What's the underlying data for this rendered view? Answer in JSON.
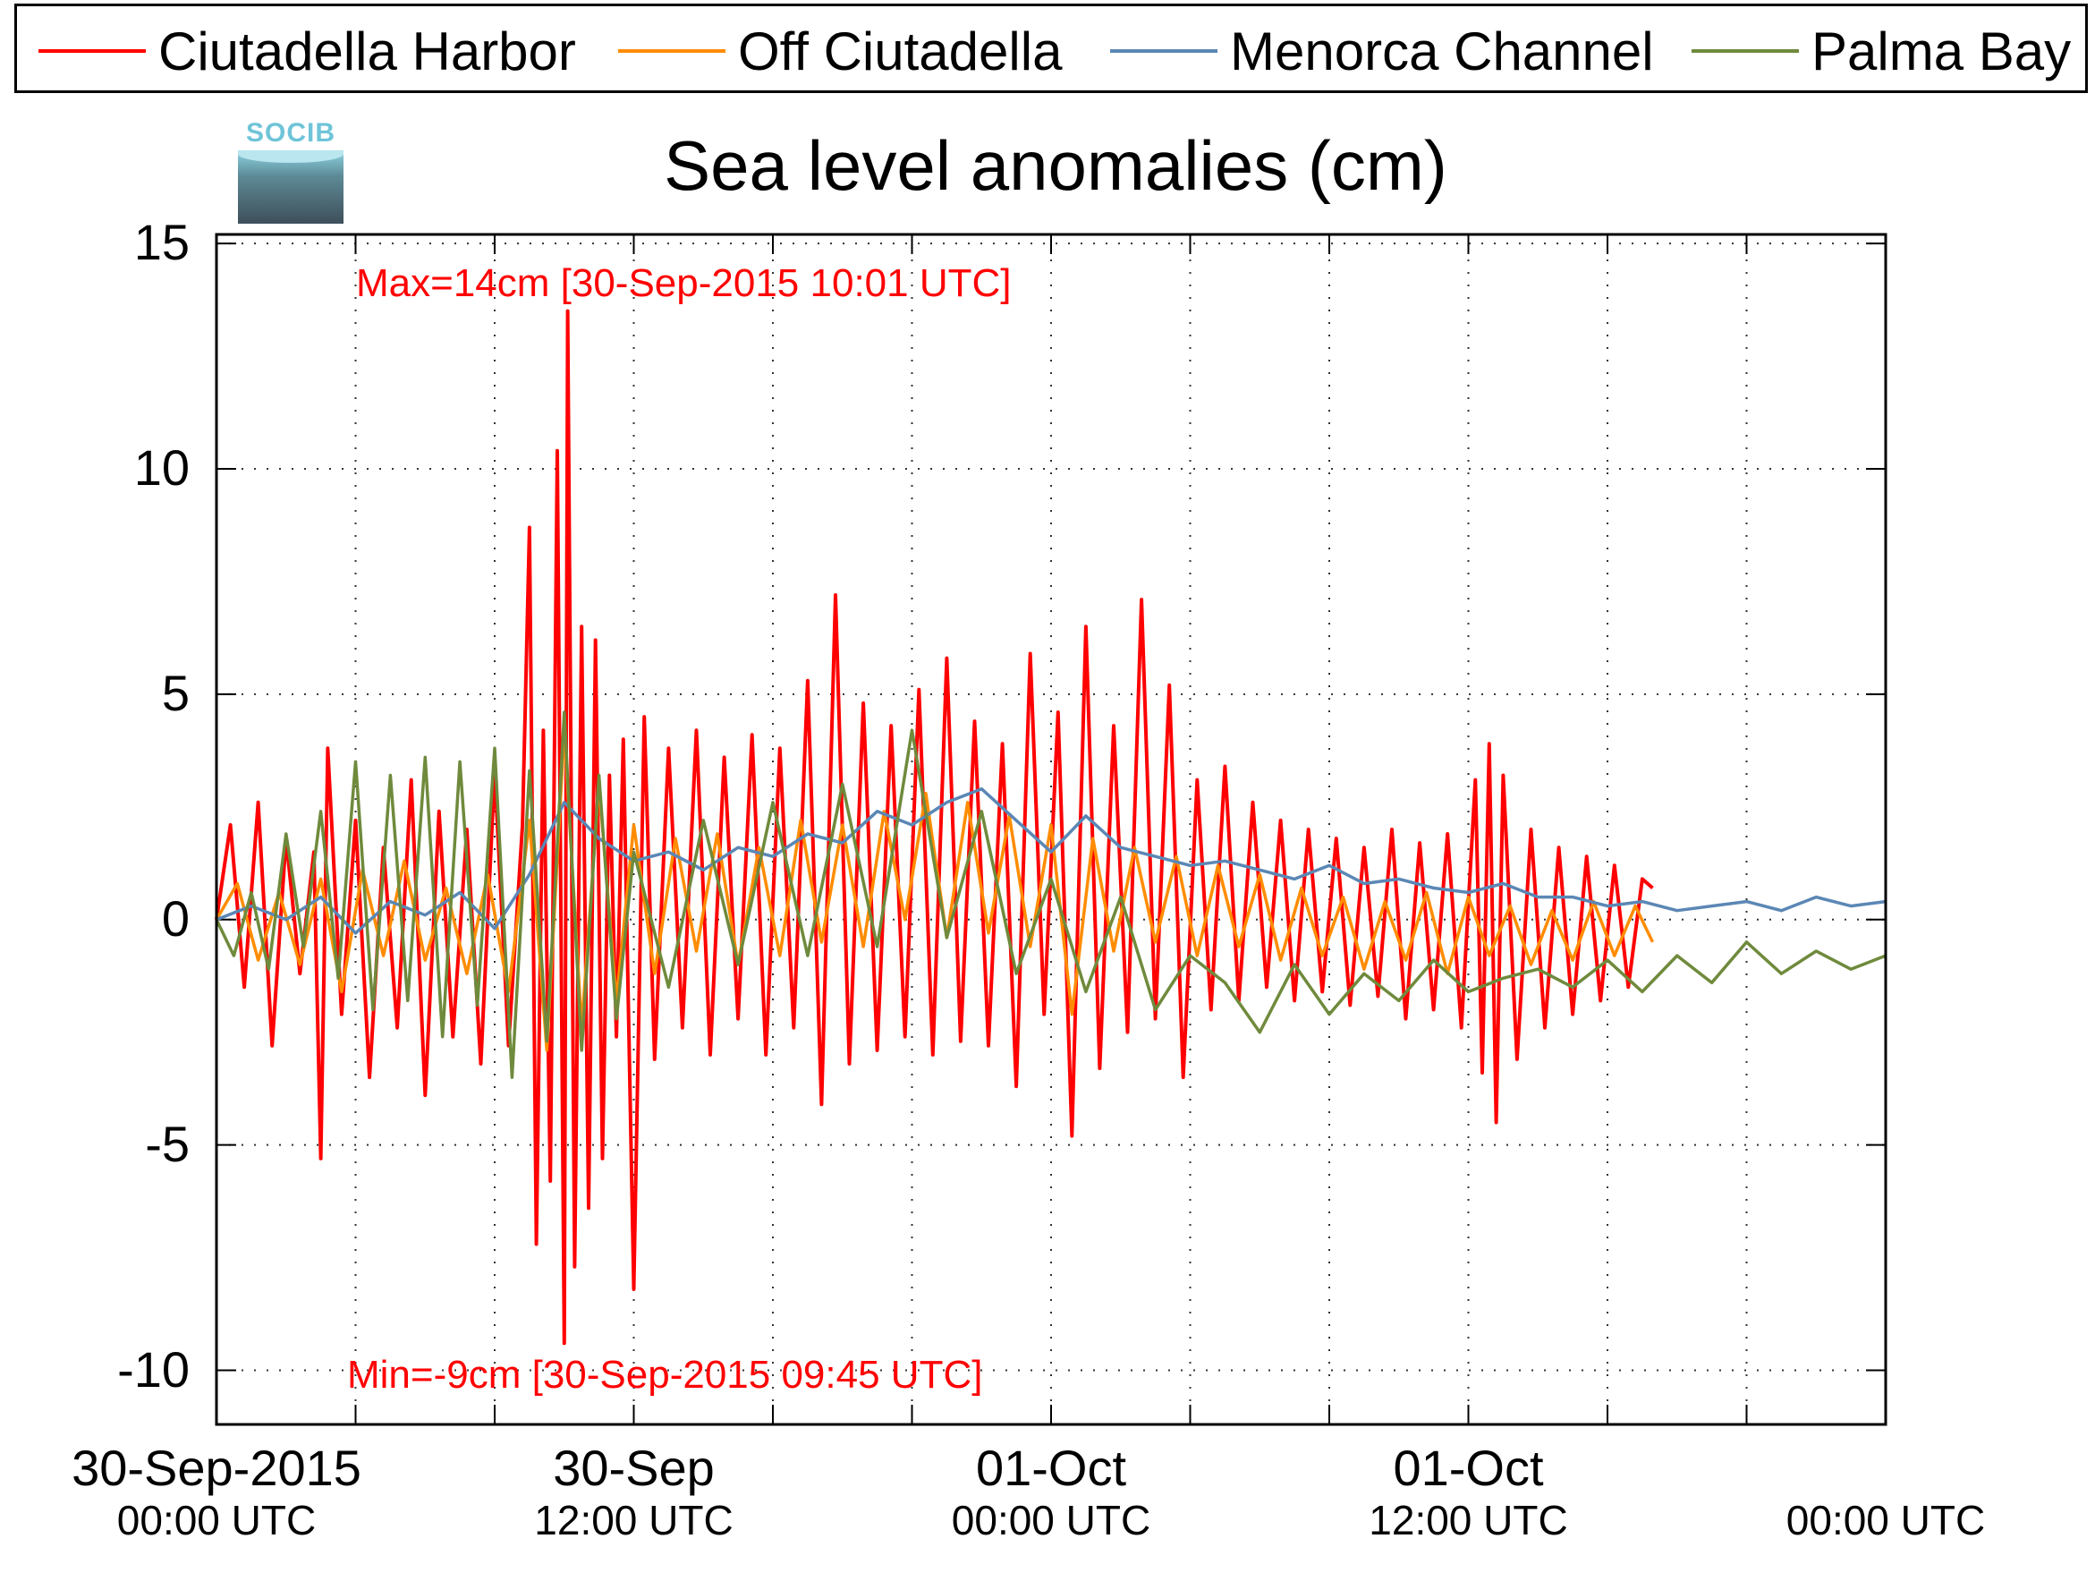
{
  "legend": [
    {
      "label": "Ciutadella Harbor",
      "color": "#ff0000"
    },
    {
      "label": "Off Ciutadella",
      "color": "#ff8c00"
    },
    {
      "label": "Menorca Channel",
      "color": "#5b87b5"
    },
    {
      "label": "Palma Bay",
      "color": "#6f8a3c"
    }
  ],
  "logo_text": "SOCIB",
  "chart_data": {
    "type": "line",
    "title": "Sea level anomalies (cm)",
    "xlabel": "",
    "ylabel": "",
    "xlim_hours": [
      0,
      48
    ],
    "ylim": [
      -11.2,
      15.2
    ],
    "y_ticks": [
      "15",
      "10",
      "5",
      "0",
      "-5",
      "-10"
    ],
    "x_ticks": [
      {
        "hour": 0,
        "label": "30-Sep-2015",
        "sublabel": "00:00 UTC"
      },
      {
        "hour": 12,
        "label": "30-Sep",
        "sublabel": "12:00 UTC"
      },
      {
        "hour": 24,
        "label": "01-Oct",
        "sublabel": "00:00 UTC"
      },
      {
        "hour": 36,
        "label": "01-Oct",
        "sublabel": "12:00 UTC"
      },
      {
        "hour": 48,
        "label": "",
        "sublabel": "00:00 UTC"
      }
    ],
    "grid": true,
    "legend_position": "top",
    "annotations": {
      "max_text": "Max=14cm [30-Sep-2015 10:01 UTC]",
      "min_text": "Min=-9cm [30-Sep-2015 09:45 UTC]"
    },
    "series": [
      {
        "name": "Ciutadella Harbor",
        "x_hours": [
          0,
          0.4,
          0.8,
          1.2,
          1.6,
          2.0,
          2.4,
          2.8,
          3.0,
          3.2,
          3.6,
          4.0,
          4.4,
          4.8,
          5.2,
          5.6,
          6.0,
          6.4,
          6.8,
          7.2,
          7.6,
          8.0,
          8.4,
          8.8,
          9.0,
          9.2,
          9.4,
          9.6,
          9.8,
          10.0,
          10.1,
          10.3,
          10.5,
          10.7,
          10.9,
          11.1,
          11.3,
          11.5,
          11.7,
          12.0,
          12.3,
          12.6,
          13.0,
          13.4,
          13.8,
          14.2,
          14.6,
          15.0,
          15.4,
          15.8,
          16.2,
          16.6,
          17.0,
          17.4,
          17.8,
          18.2,
          18.6,
          19.0,
          19.4,
          19.8,
          20.2,
          20.6,
          21.0,
          21.4,
          21.8,
          22.2,
          22.6,
          23.0,
          23.4,
          23.8,
          24.2,
          24.6,
          25.0,
          25.4,
          25.8,
          26.2,
          26.6,
          27.0,
          27.4,
          27.8,
          28.2,
          28.6,
          29.0,
          29.4,
          29.8,
          30.2,
          30.6,
          31.0,
          31.4,
          31.8,
          32.2,
          32.6,
          33.0,
          33.4,
          33.8,
          34.2,
          34.6,
          35.0,
          35.4,
          35.8,
          36.2,
          36.4,
          36.6,
          36.8,
          37.0,
          37.4,
          37.8,
          38.2,
          38.6,
          39.0,
          39.4,
          39.8,
          40.2,
          40.6,
          41.0,
          41.3
        ],
        "values": [
          0,
          2.1,
          -1.5,
          2.6,
          -2.8,
          1.8,
          -1.2,
          1.5,
          -5.3,
          3.8,
          -2.1,
          2.2,
          -3.5,
          1.6,
          -2.4,
          3.1,
          -3.9,
          2.4,
          -2.6,
          2.0,
          -3.2,
          3.3,
          -2.8,
          2.1,
          8.7,
          -7.2,
          4.2,
          -5.8,
          10.4,
          -9.4,
          13.5,
          -7.7,
          6.5,
          -6.4,
          6.2,
          -5.3,
          3.2,
          -2.6,
          4.0,
          -8.2,
          4.5,
          -3.1,
          3.8,
          -2.4,
          4.2,
          -3.0,
          3.6,
          -2.2,
          4.1,
          -3.0,
          3.8,
          -2.4,
          5.3,
          -4.1,
          7.2,
          -3.2,
          4.8,
          -2.9,
          4.3,
          -2.6,
          5.1,
          -3.0,
          5.8,
          -2.7,
          4.4,
          -2.8,
          3.9,
          -3.7,
          5.9,
          -2.1,
          4.6,
          -4.8,
          6.5,
          -3.3,
          4.3,
          -2.5,
          7.1,
          -2.2,
          5.2,
          -3.5,
          3.1,
          -2.0,
          3.4,
          -1.8,
          2.6,
          -1.5,
          2.2,
          -1.8,
          2.0,
          -1.6,
          1.8,
          -1.9,
          1.6,
          -1.7,
          2.0,
          -2.2,
          1.7,
          -2.0,
          1.9,
          -2.4,
          3.1,
          -3.4,
          3.9,
          -4.5,
          3.2,
          -3.1,
          2.0,
          -2.4,
          1.6,
          -2.1,
          1.4,
          -1.8,
          1.2,
          -1.5,
          0.9,
          0.7
        ]
      },
      {
        "name": "Off Ciutadella",
        "x_hours": [
          0,
          0.6,
          1.2,
          1.8,
          2.4,
          3.0,
          3.6,
          4.2,
          4.8,
          5.4,
          6.0,
          6.6,
          7.2,
          7.8,
          8.4,
          9.0,
          9.5,
          10.0,
          10.5,
          11.0,
          11.5,
          12.0,
          12.6,
          13.2,
          13.8,
          14.4,
          15.0,
          15.6,
          16.2,
          16.8,
          17.4,
          18.0,
          18.6,
          19.2,
          19.8,
          20.4,
          21.0,
          21.6,
          22.2,
          22.8,
          23.4,
          24.0,
          24.6,
          25.2,
          25.8,
          26.4,
          27.0,
          27.6,
          28.2,
          28.8,
          29.4,
          30.0,
          30.6,
          31.2,
          31.8,
          32.4,
          33.0,
          33.6,
          34.2,
          34.8,
          35.4,
          36.0,
          36.6,
          37.2,
          37.8,
          38.4,
          39.0,
          39.6,
          40.2,
          40.8,
          41.3
        ],
        "values": [
          0,
          0.8,
          -0.9,
          0.6,
          -1.0,
          0.9,
          -1.6,
          1.1,
          -0.8,
          1.3,
          -0.9,
          0.7,
          -1.2,
          1.0,
          -1.6,
          2.2,
          -2.9,
          4.2,
          -2.4,
          3.0,
          -1.8,
          2.1,
          -1.2,
          1.8,
          -0.7,
          1.9,
          -1.0,
          1.6,
          -0.8,
          2.2,
          -0.5,
          2.1,
          -0.6,
          2.4,
          0.0,
          2.8,
          -0.4,
          2.6,
          -0.3,
          2.3,
          -0.6,
          2.1,
          -2.1,
          1.8,
          -0.7,
          1.6,
          -0.5,
          1.4,
          -0.8,
          1.2,
          -0.6,
          1.0,
          -0.9,
          0.7,
          -0.8,
          0.5,
          -1.1,
          0.4,
          -0.9,
          0.6,
          -1.2,
          0.5,
          -0.8,
          0.3,
          -1.0,
          0.2,
          -0.9,
          0.4,
          -0.8,
          0.3,
          -0.5
        ]
      },
      {
        "name": "Menorca Channel",
        "x_hours": [
          0,
          1,
          2,
          3,
          4,
          5,
          6,
          7,
          8,
          9,
          10,
          11,
          12,
          13,
          14,
          15,
          16,
          17,
          18,
          19,
          20,
          21,
          22,
          23,
          24,
          25,
          26,
          27,
          28,
          29,
          30,
          31,
          32,
          33,
          34,
          35,
          36,
          37,
          38,
          39,
          40,
          41,
          42,
          43,
          44,
          45,
          46,
          47,
          48
        ],
        "values": [
          0,
          0.3,
          0.0,
          0.5,
          -0.3,
          0.4,
          0.1,
          0.6,
          -0.2,
          1.0,
          2.6,
          1.8,
          1.3,
          1.5,
          1.1,
          1.6,
          1.4,
          1.9,
          1.7,
          2.4,
          2.1,
          2.6,
          2.9,
          2.2,
          1.5,
          2.3,
          1.6,
          1.4,
          1.2,
          1.3,
          1.1,
          0.9,
          1.2,
          0.8,
          0.9,
          0.7,
          0.6,
          0.8,
          0.5,
          0.5,
          0.3,
          0.4,
          0.2,
          0.3,
          0.4,
          0.2,
          0.5,
          0.3,
          0.4
        ]
      },
      {
        "name": "Palma Bay",
        "x_hours": [
          0,
          0.5,
          1.0,
          1.5,
          2.0,
          2.5,
          3.0,
          3.5,
          4.0,
          4.5,
          5.0,
          5.5,
          6.0,
          6.5,
          7.0,
          7.5,
          8.0,
          8.5,
          9.0,
          9.5,
          10.0,
          10.5,
          11.0,
          11.5,
          12.0,
          13,
          14,
          15,
          16,
          17,
          18,
          19,
          20,
          21,
          22,
          23,
          24,
          25,
          26,
          27,
          28,
          29,
          30,
          31,
          32,
          33,
          34,
          35,
          36,
          37,
          38,
          39,
          40,
          41,
          42,
          43,
          44,
          45,
          46,
          47,
          48
        ],
        "values": [
          0,
          -0.8,
          0.6,
          -1.1,
          1.9,
          -0.6,
          2.4,
          -1.3,
          3.5,
          -2.0,
          3.2,
          -1.8,
          3.6,
          -2.6,
          3.5,
          -1.9,
          3.8,
          -3.5,
          3.3,
          -2.7,
          4.6,
          -2.9,
          3.2,
          -2.2,
          1.5,
          -1.5,
          2.2,
          -1.0,
          2.6,
          -0.8,
          3.0,
          -0.6,
          4.2,
          -0.4,
          2.4,
          -1.2,
          0.9,
          -1.6,
          0.5,
          -2.0,
          -0.8,
          -1.4,
          -2.5,
          -1.0,
          -2.1,
          -1.2,
          -1.8,
          -0.9,
          -1.6,
          -1.3,
          -1.1,
          -1.5,
          -0.9,
          -1.6,
          -0.8,
          -1.4,
          -0.5,
          -1.2,
          -0.7,
          -1.1,
          -0.8
        ]
      }
    ]
  }
}
